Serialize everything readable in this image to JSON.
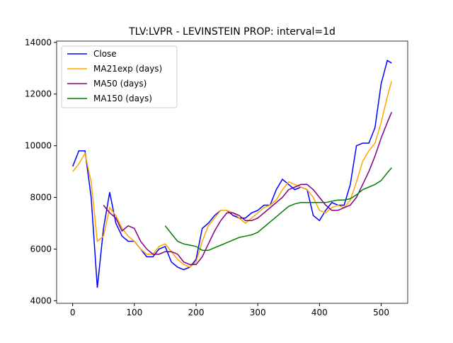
{
  "chart_data": {
    "type": "line",
    "title": "TLV:LVPR - LEVINSTEIN PROP: interval=1d",
    "x": [
      0,
      10,
      20,
      30,
      40,
      50,
      60,
      70,
      80,
      90,
      100,
      110,
      120,
      130,
      140,
      150,
      160,
      170,
      180,
      190,
      200,
      210,
      220,
      230,
      240,
      250,
      260,
      270,
      280,
      290,
      300,
      310,
      320,
      330,
      340,
      350,
      360,
      370,
      380,
      390,
      400,
      410,
      420,
      430,
      440,
      450,
      460,
      470,
      480,
      490,
      500,
      510,
      517
    ],
    "series": [
      {
        "name": "Close",
        "color": "#0000ff",
        "values": [
          9200,
          9800,
          9800,
          8000,
          4500,
          6800,
          8200,
          7000,
          6500,
          6300,
          6300,
          6000,
          5700,
          5700,
          6000,
          6100,
          5500,
          5300,
          5200,
          5300,
          5600,
          6800,
          7000,
          7300,
          7500,
          7500,
          7300,
          7200,
          7200,
          7400,
          7500,
          7700,
          7700,
          8300,
          8700,
          8500,
          8300,
          8400,
          8300,
          7300,
          7100,
          7500,
          7800,
          7700,
          7700,
          8500,
          10000,
          10100,
          10100,
          10700,
          12400,
          13300,
          13200
        ]
      },
      {
        "name": "MA21exp (days)",
        "color": "#ffa500",
        "values": [
          9000,
          9300,
          9700,
          8600,
          6300,
          6500,
          7600,
          7300,
          6800,
          6500,
          6300,
          6000,
          5800,
          5800,
          6100,
          6200,
          5900,
          5600,
          5400,
          5300,
          5500,
          6300,
          6900,
          7200,
          7500,
          7500,
          7400,
          7200,
          7000,
          7200,
          7400,
          7600,
          7700,
          7900,
          8300,
          8600,
          8500,
          8400,
          8300,
          8000,
          7500,
          7400,
          7600,
          7700,
          7600,
          7900,
          8600,
          9400,
          9800,
          10100,
          10900,
          11900,
          12500
        ]
      },
      {
        "name": "MA50 (days)",
        "color": "#800080",
        "values": [
          null,
          null,
          null,
          null,
          null,
          7700,
          7400,
          7200,
          6700,
          6900,
          6800,
          6300,
          6000,
          5800,
          5800,
          5900,
          5900,
          5800,
          5500,
          5400,
          5400,
          5700,
          6200,
          6700,
          7100,
          7400,
          7400,
          7300,
          7100,
          7100,
          7200,
          7400,
          7600,
          7800,
          8000,
          8300,
          8400,
          8500,
          8500,
          8300,
          8000,
          7700,
          7500,
          7500,
          7600,
          7700,
          8000,
          8500,
          9000,
          9600,
          10300,
          10900,
          11300
        ]
      },
      {
        "name": "MA150 (days)",
        "color": "#008000",
        "values": [
          null,
          null,
          null,
          null,
          null,
          null,
          null,
          null,
          null,
          null,
          null,
          null,
          null,
          null,
          null,
          6900,
          6600,
          6300,
          6200,
          6150,
          6100,
          5950,
          5950,
          6050,
          6150,
          6250,
          6350,
          6450,
          6500,
          6550,
          6650,
          6850,
          7050,
          7250,
          7450,
          7650,
          7750,
          7800,
          7800,
          7800,
          7800,
          7800,
          7850,
          7900,
          7900,
          7950,
          8100,
          8300,
          8400,
          8500,
          8650,
          8950,
          9150
        ]
      }
    ],
    "xlim": [
      -26,
      543
    ],
    "ylim": [
      3900,
      14050
    ],
    "xticks": [
      0,
      100,
      200,
      300,
      400,
      500
    ],
    "yticks": [
      4000,
      6000,
      8000,
      10000,
      12000,
      14000
    ],
    "legend": "upper left"
  }
}
